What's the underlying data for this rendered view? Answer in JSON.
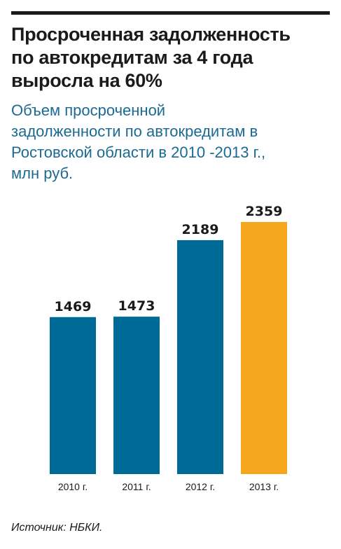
{
  "header": {
    "title_lines": [
      "Просроченная задолженность",
      "по автокредитам за 4 года",
      "выросла на 60%"
    ],
    "subtitle_lines": [
      "Объем просроченной",
      "задолженности по автокредитам в",
      "Ростовской области в 2010 -2013 г.,",
      "млн руб."
    ]
  },
  "chart_data": {
    "type": "bar",
    "categories": [
      "2010 г.",
      "2011 г.",
      "2012 г.",
      "2013 г."
    ],
    "values": [
      1469,
      1473,
      2189,
      2359
    ],
    "data_labels": [
      "1469",
      "1473",
      "2189",
      "2359"
    ],
    "ylim": [
      0,
      2359
    ],
    "grid": false,
    "legend": "none",
    "colors": [
      "#006a96",
      "#006a96",
      "#006a96",
      "#f6a71e"
    ]
  },
  "footer": {
    "source": "Источник: НБКИ."
  }
}
